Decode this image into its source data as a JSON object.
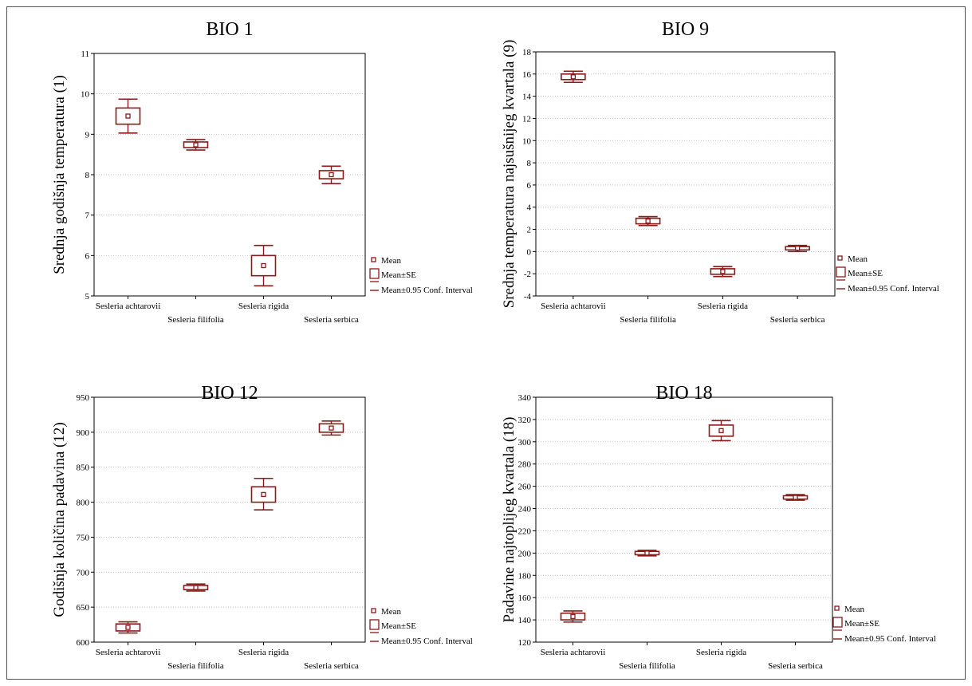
{
  "colors": {
    "box": "#8b1a1a",
    "grid": "#b0b0b0",
    "axis": "#000000"
  },
  "legend": {
    "mean": "Mean",
    "se": "Mean±SE",
    "ci": "Mean±0.95 Conf. Interval"
  },
  "chart_data": [
    {
      "type": "box",
      "title": "BIO 1",
      "ylabel": "Srednja godišnja temperatura (1)",
      "ylim": [
        5,
        11
      ],
      "yticks": [
        5,
        6,
        7,
        8,
        9,
        10,
        11
      ],
      "grid": true,
      "legend_position": "right-bottom",
      "categories": [
        "Sesleria achtarovii",
        "Sesleria filifolia",
        "Sesleria rigida",
        "Sesleria serbica"
      ],
      "mean": [
        9.45,
        8.74,
        5.75,
        8.0
      ],
      "se_low": [
        9.25,
        8.67,
        5.5,
        7.9
      ],
      "se_high": [
        9.65,
        8.81,
        6.0,
        8.1
      ],
      "ci_low": [
        9.03,
        8.61,
        5.25,
        7.78
      ],
      "ci_high": [
        9.87,
        8.87,
        6.25,
        8.21
      ]
    },
    {
      "type": "box",
      "title": "BIO 9",
      "ylabel": "Srednja temperatura najsušnijeg kvartala (9)",
      "ylim": [
        -4,
        18
      ],
      "yticks": [
        -4,
        -2,
        0,
        2,
        4,
        6,
        8,
        10,
        12,
        14,
        16,
        18
      ],
      "grid": true,
      "legend_position": "right-bottom",
      "categories": [
        "Sesleria achtarovii",
        "Sesleria filifolia",
        "Sesleria rigida",
        "Sesleria serbica"
      ],
      "mean": [
        15.75,
        2.75,
        -1.8,
        0.3
      ],
      "se_low": [
        15.5,
        2.5,
        -2.05,
        0.15
      ],
      "se_high": [
        16.0,
        3.0,
        -1.55,
        0.45
      ],
      "ci_low": [
        15.25,
        2.35,
        -2.25,
        0.0
      ],
      "ci_high": [
        16.25,
        3.15,
        -1.35,
        0.55
      ]
    },
    {
      "type": "box",
      "title": "BIO 12",
      "ylabel": "Godišnja količina padavina (12)",
      "ylim": [
        600,
        950
      ],
      "yticks": [
        600,
        650,
        700,
        750,
        800,
        850,
        900,
        950
      ],
      "grid": true,
      "legend_position": "right-bottom",
      "categories": [
        "Sesleria achtarovii",
        "Sesleria filifolia",
        "Sesleria rigida",
        "Sesleria serbica"
      ],
      "mean": [
        621,
        678,
        811,
        906
      ],
      "se_low": [
        616,
        675,
        800,
        900
      ],
      "se_high": [
        626,
        681,
        822,
        912
      ],
      "ci_low": [
        613,
        673,
        789,
        896
      ],
      "ci_high": [
        629,
        683,
        834,
        916
      ]
    },
    {
      "type": "box",
      "title": "BIO 18",
      "ylabel": "Padavine najtoplijeg kvartala (18)",
      "ylim": [
        120,
        340
      ],
      "yticks": [
        120,
        140,
        160,
        180,
        200,
        220,
        240,
        260,
        280,
        300,
        320,
        340
      ],
      "grid": true,
      "legend_position": "right-bottom",
      "categories": [
        "Sesleria achtarovii",
        "Sesleria filifolia",
        "Sesleria rigida",
        "Sesleria serbica"
      ],
      "mean": [
        143,
        200,
        310,
        250
      ],
      "se_low": [
        140,
        198.5,
        305,
        248.5
      ],
      "se_high": [
        146,
        201.5,
        315,
        251.5
      ],
      "ci_low": [
        138,
        197.5,
        301,
        247.5
      ],
      "ci_high": [
        148,
        202.5,
        319,
        252.5
      ]
    }
  ]
}
